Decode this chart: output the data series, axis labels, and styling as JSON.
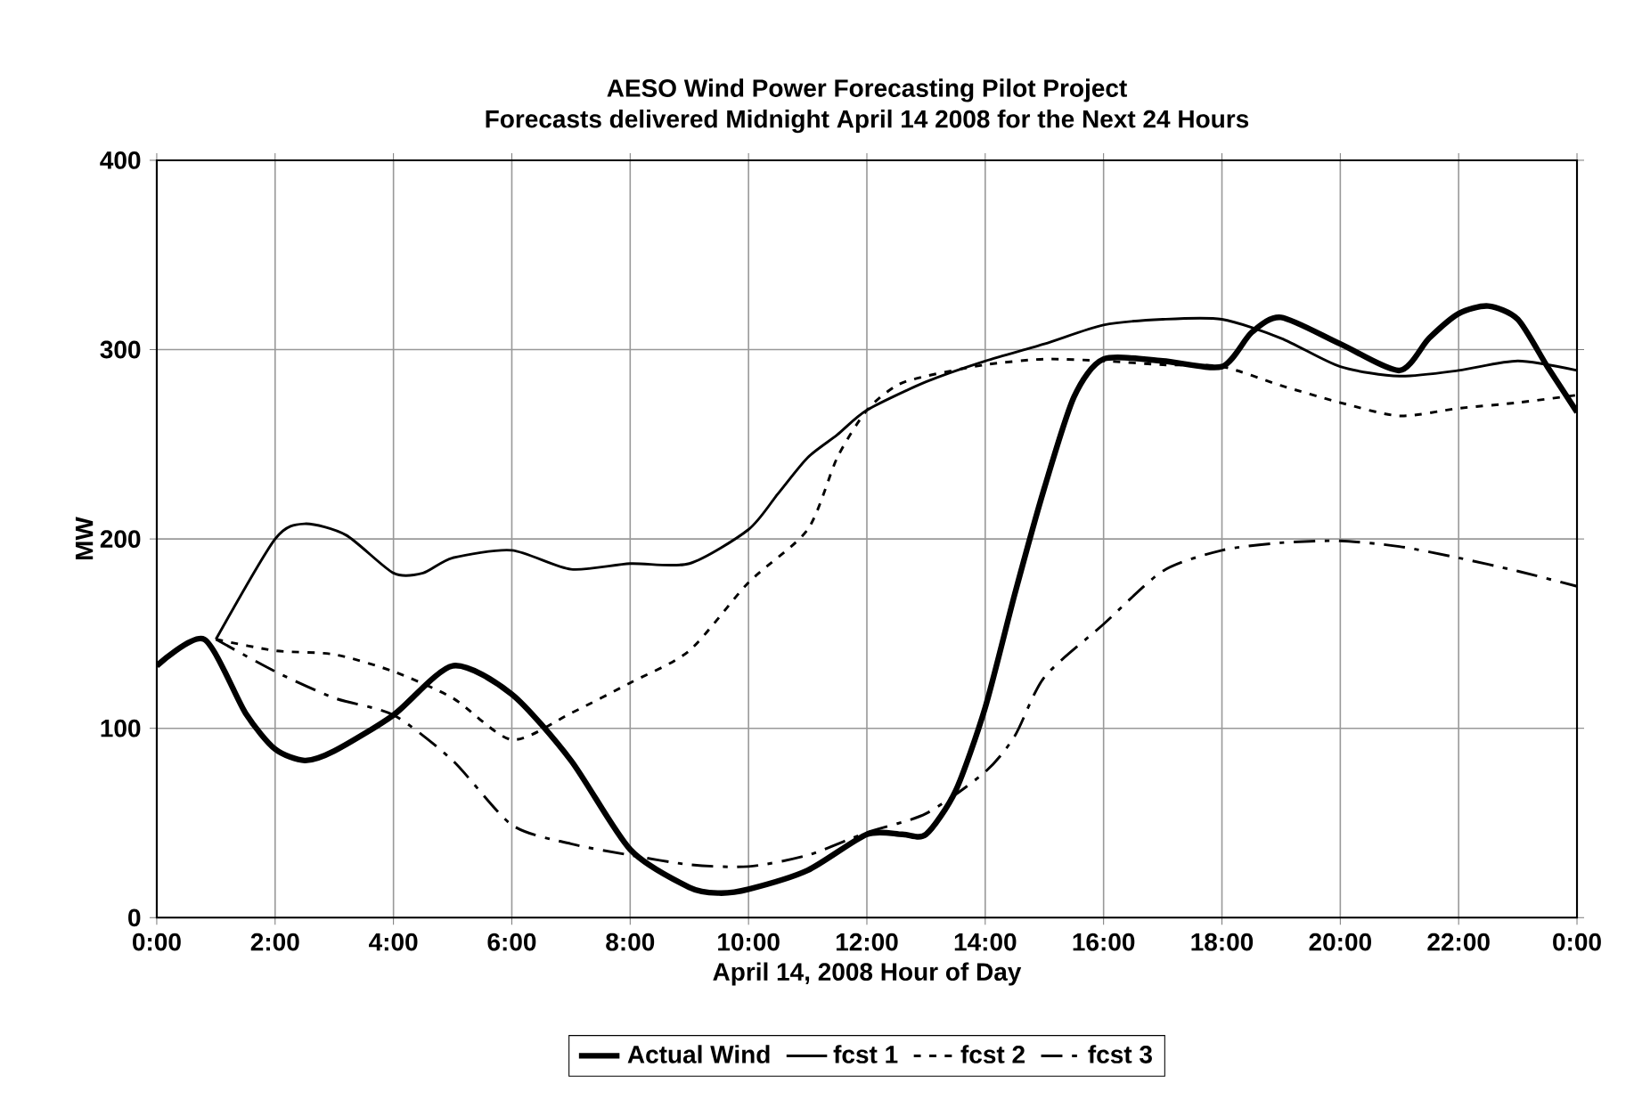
{
  "chart_data": {
    "type": "line",
    "title": "AESO Wind Power Forecasting Pilot Project",
    "subtitle": "Forecasts delivered Midnight April 14 2008 for the Next 24 Hours",
    "xlabel": "April 14, 2008 Hour of Day",
    "ylabel": "MW",
    "xlim": [
      0,
      24
    ],
    "xticks": [
      {
        "value": 0,
        "label": "0:00"
      },
      {
        "value": 2,
        "label": "2:00"
      },
      {
        "value": 4,
        "label": "4:00"
      },
      {
        "value": 6,
        "label": "6:00"
      },
      {
        "value": 8,
        "label": "8:00"
      },
      {
        "value": 10,
        "label": "10:00"
      },
      {
        "value": 12,
        "label": "12:00"
      },
      {
        "value": 14,
        "label": "14:00"
      },
      {
        "value": 16,
        "label": "16:00"
      },
      {
        "value": 18,
        "label": "18:00"
      },
      {
        "value": 20,
        "label": "20:00"
      },
      {
        "value": 22,
        "label": "22:00"
      },
      {
        "value": 24,
        "label": "0:00"
      }
    ],
    "ylim": [
      0,
      400
    ],
    "yticks": [
      0,
      100,
      200,
      300,
      400
    ],
    "grid": true,
    "legend": "bottom",
    "marker": "none",
    "series": [
      {
        "name": "Actual Wind",
        "color": "#000000",
        "line_style": "solid",
        "x": [
          0,
          0.8,
          1.5,
          2,
          2.5,
          3,
          4,
          5,
          6,
          7,
          8,
          9,
          9.5,
          10,
          11,
          12,
          12.6,
          13,
          13.5,
          14,
          14.5,
          15,
          15.5,
          16,
          17,
          18,
          18.5,
          19,
          20,
          21,
          21.5,
          22,
          22.5,
          23,
          23.5,
          24
        ],
        "values": [
          133,
          147,
          108,
          89,
          83,
          88,
          107,
          133,
          118,
          83,
          36,
          16,
          13,
          15,
          25,
          44,
          44,
          44,
          67,
          111,
          171,
          227,
          275,
          295,
          294,
          291,
          309,
          317,
          303,
          289,
          306,
          319,
          323,
          316,
          291,
          267
        ]
      },
      {
        "name": "fcst 1",
        "color": "#000000",
        "line_style": "solid",
        "x": [
          1,
          2,
          2.5,
          3.2,
          4,
          4.5,
          5,
          6,
          7,
          8,
          9,
          10,
          10.5,
          11,
          11.5,
          12,
          13,
          14,
          15,
          16,
          17,
          18,
          19,
          20,
          21,
          22,
          23,
          24
        ],
        "values": [
          147,
          200,
          208,
          202,
          182,
          182,
          190,
          194,
          184,
          187,
          187,
          205,
          224,
          243,
          255,
          268,
          283,
          294,
          303,
          313,
          316,
          316,
          306,
          291,
          286,
          289,
          294,
          289
        ]
      },
      {
        "name": "fcst 2",
        "color": "#000000",
        "line_style": "dotted",
        "x": [
          1,
          2,
          3,
          4,
          5,
          6,
          7,
          8,
          9,
          10,
          11,
          11.5,
          12,
          12.5,
          13,
          14,
          15,
          16,
          17,
          18,
          19,
          20,
          21,
          22,
          23,
          24
        ],
        "values": [
          147,
          141,
          139,
          130,
          116,
          94,
          108,
          124,
          141,
          177,
          205,
          243,
          268,
          281,
          286,
          292,
          295,
          294,
          292,
          291,
          281,
          272,
          265,
          269,
          272,
          276
        ]
      },
      {
        "name": "fcst 3",
        "color": "#000000",
        "line_style": "dashed",
        "x": [
          1,
          2,
          3,
          4,
          5,
          6,
          7,
          8,
          9,
          10,
          11,
          12,
          13,
          14,
          14.5,
          15,
          16,
          17,
          18,
          19,
          20,
          21,
          22,
          23,
          24
        ],
        "values": [
          147,
          130,
          116,
          107,
          83,
          49,
          39,
          33,
          28,
          27,
          33,
          45,
          55,
          77,
          96,
          127,
          155,
          183,
          194,
          198,
          199,
          196,
          190,
          183,
          175
        ]
      }
    ]
  }
}
